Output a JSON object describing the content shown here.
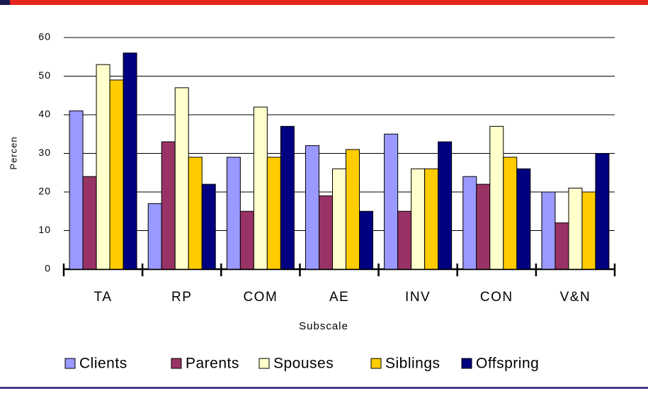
{
  "chart_data": {
    "type": "bar",
    "x_label": "Subscale",
    "y_label": "Percen",
    "categories": [
      "TA",
      "RP",
      "COM",
      "AE",
      "INV",
      "CON",
      "V&N"
    ],
    "series": [
      {
        "name": "Clients",
        "color": "#9999ff",
        "values": [
          41,
          17,
          29,
          32,
          35,
          24,
          20
        ]
      },
      {
        "name": "Parents",
        "color": "#993366",
        "values": [
          24,
          33,
          15,
          19,
          15,
          22,
          12
        ]
      },
      {
        "name": "Spouses",
        "color": "#ffffcc",
        "values": [
          53,
          47,
          42,
          26,
          26,
          37,
          21
        ]
      },
      {
        "name": "Siblings",
        "color": "#ffcc00",
        "values": [
          49,
          29,
          29,
          31,
          26,
          29,
          20
        ]
      },
      {
        "name": "Offspring",
        "color": "#000080",
        "values": [
          56,
          22,
          37,
          15,
          33,
          26,
          30
        ]
      }
    ],
    "ylim": [
      0,
      60
    ],
    "yticks": [
      0,
      10,
      20,
      30,
      40,
      50,
      60
    ],
    "grid": true,
    "legend": "bottom"
  }
}
